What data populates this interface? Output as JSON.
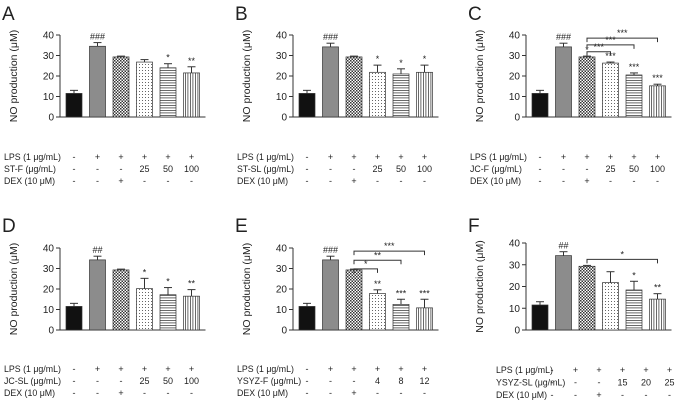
{
  "chart_data": [
    {
      "type": "bar",
      "panel_label": "A",
      "ylabel": "NO production (μM)",
      "ylim": [
        0,
        40
      ],
      "yticks": [
        0,
        10,
        20,
        30,
        40
      ],
      "values": [
        11.5,
        34.5,
        29.3,
        26.8,
        24.0,
        21.5
      ],
      "errors": [
        1.5,
        1.8,
        0.4,
        1.2,
        2.0,
        3.0
      ],
      "labels_above": [
        "",
        "###",
        "",
        "",
        "*",
        "**"
      ],
      "treatment_rows": [
        {
          "label": "LPS (1 μg/mL)",
          "cells": [
            "-",
            "+",
            "+",
            "+",
            "+",
            "+"
          ]
        },
        {
          "label": "ST-F (μg/mL)",
          "cells": [
            "-",
            "-",
            "-",
            "25",
            "50",
            "100"
          ]
        },
        {
          "label": "DEX (10 μM)",
          "cells": [
            "-",
            "-",
            "+",
            "-",
            "-",
            "-"
          ]
        }
      ],
      "brackets": []
    },
    {
      "type": "bar",
      "panel_label": "B",
      "ylabel": "NO production (μM)",
      "ylim": [
        0,
        40
      ],
      "yticks": [
        0,
        10,
        20,
        30,
        40
      ],
      "values": [
        11.5,
        34.2,
        29.3,
        21.8,
        21.0,
        21.8
      ],
      "errors": [
        1.5,
        1.8,
        0.4,
        3.5,
        2.5,
        3.5
      ],
      "labels_above": [
        "",
        "###",
        "",
        "*",
        "*",
        "*"
      ],
      "treatment_rows": [
        {
          "label": "LPS (1 μg/mL)",
          "cells": [
            "-",
            "+",
            "+",
            "+",
            "+",
            "+"
          ]
        },
        {
          "label": "ST-SL (μg/mL)",
          "cells": [
            "-",
            "-",
            "-",
            "25",
            "50",
            "100"
          ]
        },
        {
          "label": "DEX (10 μM)",
          "cells": [
            "-",
            "-",
            "+",
            "-",
            "-",
            "-"
          ]
        }
      ],
      "brackets": []
    },
    {
      "type": "bar",
      "panel_label": "C",
      "ylabel": "NO production (μM)",
      "ylim": [
        0,
        40
      ],
      "yticks": [
        0,
        10,
        20,
        30,
        40
      ],
      "values": [
        11.5,
        34.2,
        29.3,
        26.3,
        20.5,
        15.2
      ],
      "errors": [
        1.5,
        1.8,
        0.4,
        0.5,
        1.0,
        0.8
      ],
      "labels_above": [
        "",
        "###",
        "*",
        "***",
        "***",
        "***"
      ],
      "treatment_rows": [
        {
          "label": "LPS (1 μg/mL)",
          "cells": [
            "-",
            "+",
            "+",
            "+",
            "+",
            "+"
          ]
        },
        {
          "label": "JC-F (μg/mL)",
          "cells": [
            "-",
            "-",
            "-",
            "25",
            "50",
            "100"
          ]
        },
        {
          "label": "DEX (10 μM)",
          "cells": [
            "-",
            "-",
            "+",
            "-",
            "-",
            "-"
          ]
        }
      ],
      "brackets": [
        {
          "from": 2,
          "to": 5,
          "y": 38.5,
          "label": "***"
        },
        {
          "from": 2,
          "to": 4,
          "y": 35.2,
          "label": "***"
        },
        {
          "from": 2,
          "to": 3,
          "y": 31.8,
          "label": "***"
        }
      ]
    },
    {
      "type": "bar",
      "panel_label": "D",
      "ylabel": "NO production (μM)",
      "ylim": [
        0,
        40
      ],
      "yticks": [
        0,
        10,
        20,
        30,
        40
      ],
      "values": [
        11.5,
        34.2,
        29.3,
        20.2,
        17.2,
        16.5
      ],
      "errors": [
        1.5,
        1.8,
        0.4,
        5.0,
        3.5,
        3.2
      ],
      "labels_above": [
        "",
        "##",
        "",
        "*",
        "*",
        "**"
      ],
      "treatment_rows": [
        {
          "label": "LPS (1 μg/mL)",
          "cells": [
            "-",
            "+",
            "+",
            "+",
            "+",
            "+"
          ]
        },
        {
          "label": "JC-SL (μg/mL)",
          "cells": [
            "-",
            "-",
            "-",
            "25",
            "50",
            "100"
          ]
        },
        {
          "label": "DEX (10 μM)",
          "cells": [
            "-",
            "-",
            "+",
            "-",
            "-",
            "-"
          ]
        }
      ],
      "brackets": []
    },
    {
      "type": "bar",
      "panel_label": "E",
      "ylabel": "NO production (μM)",
      "ylim": [
        0,
        40
      ],
      "yticks": [
        0,
        10,
        20,
        30,
        40
      ],
      "values": [
        11.5,
        34.2,
        29.3,
        17.8,
        12.5,
        10.8
      ],
      "errors": [
        1.5,
        1.8,
        0.4,
        1.8,
        2.5,
        4.2
      ],
      "labels_above": [
        "",
        "###",
        "",
        "**",
        "***",
        "***"
      ],
      "treatment_rows": [
        {
          "label": "LPS (1 μg/mL)",
          "cells": [
            "-",
            "+",
            "+",
            "+",
            "+",
            "+"
          ]
        },
        {
          "label": "YSYZ-F (μg/mL)",
          "cells": [
            "-",
            "-",
            "-",
            "4",
            "8",
            "12"
          ]
        },
        {
          "label": "DEX (10 μM)",
          "cells": [
            "-",
            "-",
            "+",
            "-",
            "-",
            "-"
          ]
        }
      ],
      "brackets": [
        {
          "from": 2,
          "to": 5,
          "y": 38.5,
          "label": "***"
        },
        {
          "from": 2,
          "to": 4,
          "y": 34.0,
          "label": "**"
        },
        {
          "from": 2,
          "to": 3,
          "y": 29.8,
          "label": "*"
        }
      ]
    },
    {
      "type": "bar",
      "panel_label": "F",
      "ylabel": "NO production (μM)",
      "ylim": [
        0,
        40
      ],
      "yticks": [
        0,
        10,
        20,
        30,
        40
      ],
      "values": [
        11.5,
        34.2,
        29.3,
        21.8,
        18.4,
        14.2
      ],
      "errors": [
        1.5,
        1.8,
        0.4,
        5.0,
        4.0,
        2.5
      ],
      "labels_above": [
        "",
        "##",
        "",
        "",
        "*",
        "**"
      ],
      "treatment_rows": [
        {
          "label": "LPS (1 μg/mL)",
          "cells": [
            "-",
            "+",
            "+",
            "+",
            "+",
            "+"
          ]
        },
        {
          "label": "YSYZ-SL (μg/mL)",
          "cells": [
            "-",
            "-",
            "-",
            "15",
            "20",
            "25"
          ]
        },
        {
          "label": "DEX (10 μM)",
          "cells": [
            "-",
            "-",
            "+",
            "-",
            "-",
            "-"
          ]
        }
      ],
      "brackets": [
        {
          "from": 2,
          "to": 5,
          "y": 32.5,
          "label": "*"
        }
      ]
    }
  ],
  "colors": {
    "bar_control": "#111111",
    "bar_lps": "#8c8c8c",
    "bar_outline": "#333333",
    "pattern_fill": "#ffffff"
  }
}
